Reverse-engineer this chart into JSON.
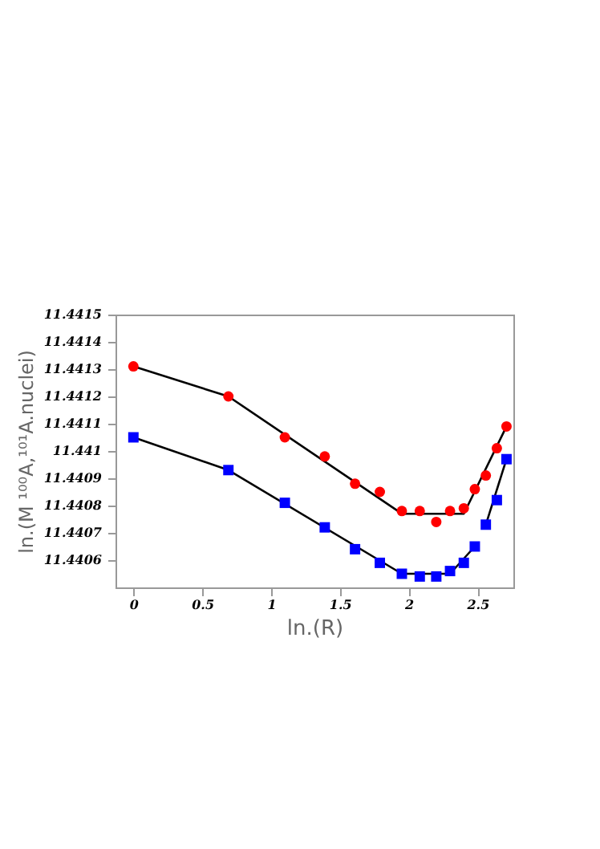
{
  "chart_data": {
    "type": "scatter",
    "xlabel": "ln.(R)",
    "ylabel": "ln.(M ¹⁰⁰A,¹⁰¹A.nuclei)",
    "xlim": [
      -0.13,
      2.76
    ],
    "ylim": [
      11.4405,
      11.4415
    ],
    "xticks": [
      0,
      0.5,
      1,
      1.5,
      2,
      2.5
    ],
    "yticks": [
      11.4406,
      11.4407,
      11.4408,
      11.4409,
      11.441,
      11.4411,
      11.4412,
      11.4413,
      11.4414,
      11.4415
    ],
    "grid": false,
    "series": [
      {
        "type": "line",
        "color": "#000000",
        "marker": "none",
        "x": [
          0,
          0.69,
          1.95,
          2.4,
          2.71
        ],
        "values": [
          11.44131,
          11.4412,
          11.44077,
          11.44077,
          11.44109
        ]
      },
      {
        "type": "line",
        "color": "#000000",
        "marker": "none",
        "x": [
          0,
          0.69,
          1.95,
          2.3,
          2.48
        ],
        "values": [
          11.44105,
          11.44093,
          11.44055,
          11.44055,
          11.44065
        ]
      },
      {
        "type": "line",
        "color": "#000000",
        "marker": "none",
        "x": [
          2.56,
          2.71
        ],
        "values": [
          11.44073,
          11.44097
        ]
      },
      {
        "color": "#ff0000",
        "marker": "circle",
        "x": [
          0,
          0.69,
          1.1,
          1.39,
          1.61,
          1.79,
          1.95,
          2.08,
          2.2,
          2.3,
          2.4,
          2.48,
          2.56,
          2.64,
          2.71
        ],
        "values": [
          11.44131,
          11.4412,
          11.44105,
          11.44098,
          11.44088,
          11.44085,
          11.44078,
          11.44078,
          11.44074,
          11.44078,
          11.44079,
          11.44086,
          11.44091,
          11.44101,
          11.44109
        ]
      },
      {
        "color": "#0000ff",
        "marker": "square",
        "x": [
          0,
          0.69,
          1.1,
          1.39,
          1.61,
          1.79,
          1.95,
          2.08,
          2.2,
          2.3,
          2.4,
          2.48,
          2.56,
          2.64,
          2.71
        ],
        "values": [
          11.44105,
          11.44093,
          11.44081,
          11.44072,
          11.44064,
          11.44059,
          11.44055,
          11.44054,
          11.44054,
          11.44056,
          11.44059,
          11.44065,
          11.44073,
          11.44082,
          11.44097
        ]
      }
    ]
  }
}
